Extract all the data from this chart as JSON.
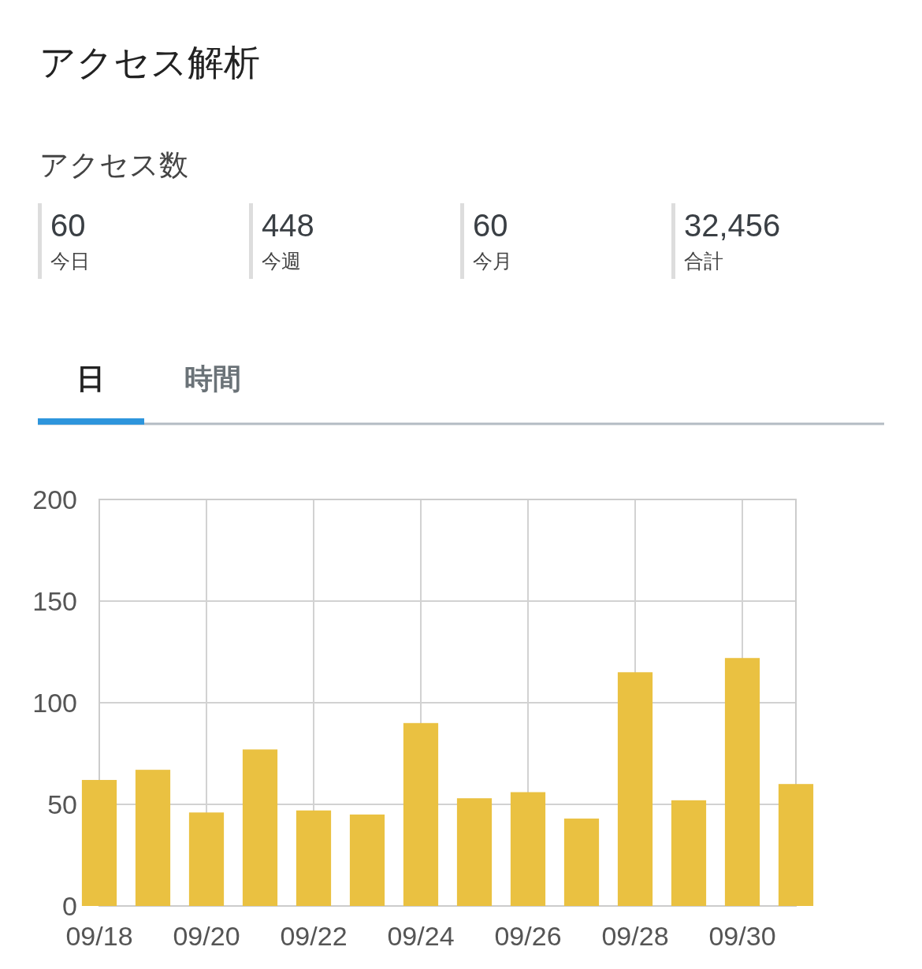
{
  "chart_data": [
    {
      "type": "other",
      "title": "アクセス解析",
      "subtitle": "アクセス数",
      "annotations": [
        "60",
        "今日",
        "448",
        "今週",
        "60",
        "今月",
        "32,456",
        "合計"
      ]
    },
    {
      "type": "bar",
      "annotations": [
        "日",
        "時間"
      ],
      "categories": [
        "09/18",
        null,
        "09/20",
        null,
        "09/22",
        null,
        "09/24",
        null,
        "09/26",
        null,
        "09/28",
        null,
        "09/30",
        null
      ],
      "values": [
        62,
        67,
        46,
        77,
        47,
        45,
        90,
        53,
        56,
        43,
        115,
        52,
        122,
        60
      ],
      "color": "#eac141",
      "ylim": [
        0,
        200
      ],
      "yticks": [
        0,
        50,
        100,
        150,
        200
      ],
      "grid": true
    }
  ]
}
